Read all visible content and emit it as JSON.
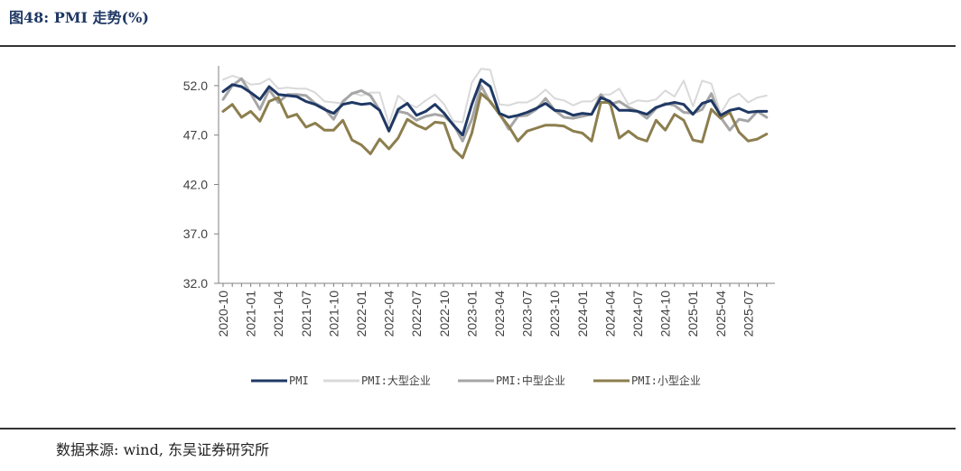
{
  "figure_title": "图48: PMI 走势(%)",
  "source_text": "数据来源: wind, 东吴证券研究所",
  "chart_data": {
    "type": "line",
    "ylim": [
      32.0,
      54.0
    ],
    "y_ticks": [
      "32.0",
      "37.0",
      "42.0",
      "47.0",
      "52.0"
    ],
    "y_tick_values": [
      32.0,
      37.0,
      42.0,
      47.0,
      52.0
    ],
    "x_tick_labels": [
      "2020-10",
      "2021-01",
      "2021-04",
      "2021-07",
      "2021-10",
      "2022-01",
      "2022-04",
      "2022-07",
      "2022-10",
      "2023-01",
      "2023-04",
      "2023-07",
      "2023-10",
      "2024-01",
      "2024-04",
      "2024-07",
      "2024-10",
      "2025-01",
      "2025-04",
      "2025-07"
    ],
    "x": [
      "2020-10",
      "2020-11",
      "2020-12",
      "2021-01",
      "2021-02",
      "2021-03",
      "2021-04",
      "2021-05",
      "2021-06",
      "2021-07",
      "2021-08",
      "2021-09",
      "2021-10",
      "2021-11",
      "2021-12",
      "2022-01",
      "2022-02",
      "2022-03",
      "2022-04",
      "2022-05",
      "2022-06",
      "2022-07",
      "2022-08",
      "2022-09",
      "2022-10",
      "2022-11",
      "2022-12",
      "2023-01",
      "2023-02",
      "2023-03",
      "2023-04",
      "2023-05",
      "2023-06",
      "2023-07",
      "2023-08",
      "2023-09",
      "2023-10",
      "2023-11",
      "2023-12",
      "2024-01",
      "2024-02",
      "2024-03",
      "2024-04",
      "2024-05",
      "2024-06",
      "2024-07",
      "2024-08",
      "2024-09",
      "2024-10",
      "2024-11",
      "2024-12",
      "2025-01",
      "2025-02",
      "2025-03",
      "2025-04",
      "2025-05",
      "2025-06",
      "2025-07",
      "2025-08",
      "2025-09"
    ],
    "grid": false,
    "legend_position": "bottom",
    "series": [
      {
        "name": "PMI",
        "color": "#1f3864",
        "width": 3,
        "values": [
          51.4,
          52.1,
          51.9,
          51.3,
          50.6,
          51.9,
          51.1,
          51.0,
          50.9,
          50.4,
          50.1,
          49.6,
          49.2,
          50.1,
          50.3,
          50.1,
          50.2,
          49.5,
          47.4,
          49.6,
          50.2,
          49.0,
          49.4,
          50.1,
          49.2,
          48.0,
          47.0,
          50.1,
          52.6,
          51.9,
          49.2,
          48.8,
          49.0,
          49.3,
          49.7,
          50.2,
          49.5,
          49.4,
          49.0,
          49.2,
          49.1,
          50.8,
          50.4,
          49.5,
          49.5,
          49.4,
          49.1,
          49.8,
          50.1,
          50.3,
          50.1,
          49.1,
          50.2,
          50.5,
          49.0,
          49.5,
          49.7,
          49.3,
          49.4,
          49.4
        ]
      },
      {
        "name": "PMI:大型企业",
        "color": "#d9d9d9",
        "width": 2,
        "values": [
          52.6,
          53.0,
          52.7,
          52.1,
          52.2,
          52.7,
          51.7,
          51.8,
          51.7,
          51.7,
          51.3,
          50.4,
          50.3,
          50.2,
          51.3,
          51.0,
          51.3,
          51.3,
          48.1,
          51.0,
          50.2,
          49.8,
          50.5,
          51.1,
          50.1,
          48.4,
          48.3,
          52.3,
          53.7,
          53.6,
          50.1,
          50.0,
          50.3,
          50.3,
          50.8,
          51.6,
          50.7,
          50.5,
          50.0,
          50.4,
          50.4,
          51.1,
          51.1,
          51.7,
          50.1,
          50.5,
          50.4,
          50.6,
          51.5,
          50.9,
          52.5,
          49.9,
          52.5,
          52.2,
          49.2,
          50.7,
          51.2,
          50.3,
          50.8,
          51.0
        ]
      },
      {
        "name": "PMI:中型企业",
        "color": "#a6a6a6",
        "width": 3,
        "values": [
          50.6,
          52.0,
          52.7,
          51.2,
          49.6,
          51.6,
          50.3,
          51.1,
          51.1,
          51.0,
          50.2,
          49.7,
          48.6,
          50.4,
          51.2,
          51.5,
          51.0,
          49.5,
          47.5,
          49.4,
          49.2,
          48.5,
          48.9,
          49.1,
          48.9,
          48.1,
          46.4,
          48.6,
          52.0,
          50.3,
          49.2,
          47.6,
          48.9,
          49.0,
          49.6,
          50.7,
          49.5,
          48.8,
          48.7,
          48.9,
          49.1,
          51.1,
          50.1,
          50.4,
          49.8,
          49.4,
          48.7,
          49.7,
          50.2,
          50.0,
          49.3,
          49.2,
          49.6,
          51.2,
          48.8,
          47.5,
          48.6,
          48.4,
          49.4,
          48.8
        ]
      },
      {
        "name": "PMI:小型企业",
        "color": "#8c7e4e",
        "width": 3,
        "values": [
          49.4,
          50.1,
          48.8,
          49.4,
          48.4,
          50.4,
          50.8,
          48.8,
          49.1,
          47.8,
          48.2,
          47.5,
          47.5,
          48.5,
          46.5,
          46.0,
          45.1,
          46.6,
          45.6,
          46.7,
          48.6,
          48.0,
          47.6,
          48.3,
          48.2,
          45.6,
          44.7,
          47.2,
          51.2,
          50.4,
          49.1,
          47.9,
          46.4,
          47.4,
          47.7,
          48.0,
          48.0,
          47.9,
          47.4,
          47.2,
          46.4,
          50.3,
          50.3,
          46.7,
          47.4,
          46.7,
          46.4,
          48.5,
          47.5,
          49.1,
          48.5,
          46.5,
          46.3,
          49.6,
          48.7,
          49.3,
          47.3,
          46.4,
          46.6,
          47.1
        ]
      }
    ]
  }
}
